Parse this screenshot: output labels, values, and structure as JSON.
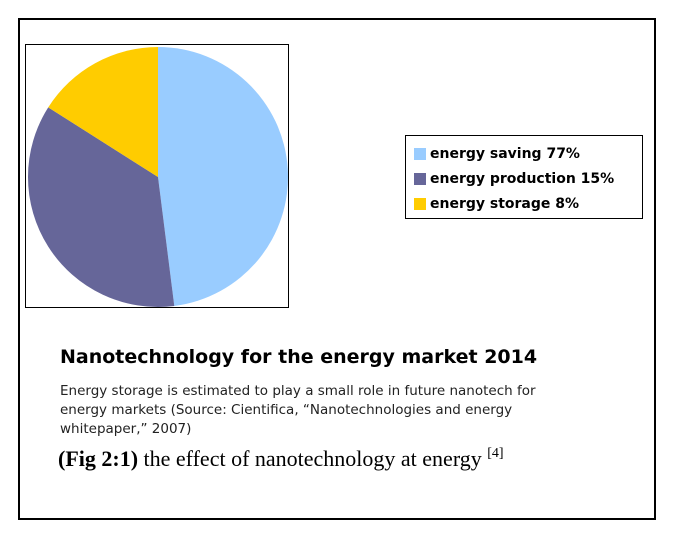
{
  "chart_data": {
    "type": "pie",
    "labels": [
      "energy saving",
      "energy production",
      "energy storage"
    ],
    "values": [
      77,
      15,
      8
    ],
    "legend_text": [
      "energy saving  77%",
      "energy production  15%",
      "energy storage  8%"
    ],
    "drawn_fractions": [
      0.48,
      0.36,
      0.16
    ],
    "colors": [
      "#99CCFF",
      "#666699",
      "#FFCC00"
    ],
    "start": "12 o'clock",
    "direction": "clockwise",
    "legend_position": "right"
  },
  "title": "Nanotechnology for the energy market 2014",
  "caption_lines": [
    "Energy storage is estimated to play a small role in future nanotech for",
    "energy markets (Source: Cientifica, “Nanotechnologies and energy",
    "whitepaper,” 2007)"
  ],
  "figure": {
    "label": "(Fig 2:1)",
    "text": " the effect of nanotechnology at energy ",
    "ref": "[4]"
  }
}
